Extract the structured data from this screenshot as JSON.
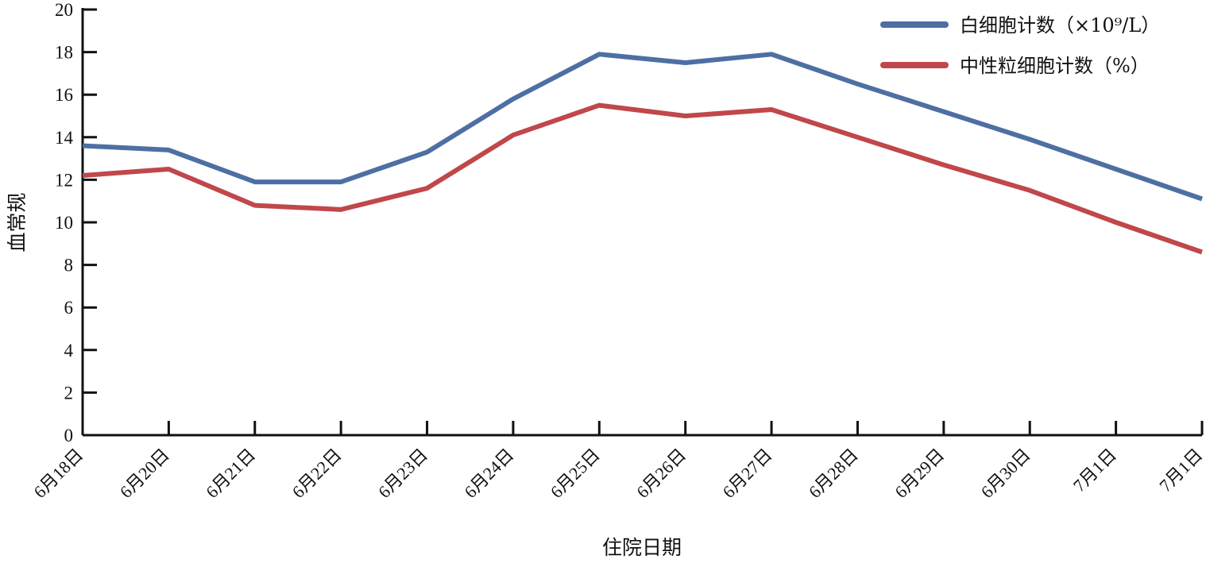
{
  "chart_data": {
    "type": "line",
    "title": "",
    "xlabel": "住院日期",
    "ylabel": "血常规",
    "ylim": [
      0,
      20
    ],
    "yticks": [
      0,
      2,
      4,
      6,
      8,
      10,
      12,
      14,
      16,
      18,
      20
    ],
    "grid": false,
    "legend_position": "top-right",
    "categories": [
      "6月18日",
      "6月20日",
      "6月21日",
      "6月22日",
      "6月23日",
      "6月24日",
      "6月25日",
      "6月26日",
      "6月27日",
      "6月28日",
      "6月29日",
      "6月30日",
      "7月1日",
      "7月1日"
    ],
    "series": [
      {
        "name": "白细胞计数（×10⁹/L）",
        "color": "#4e6fa3",
        "values": [
          13.6,
          13.4,
          11.9,
          11.9,
          13.3,
          15.8,
          17.9,
          17.5,
          17.9,
          16.5,
          15.2,
          13.9,
          12.5,
          11.1
        ]
      },
      {
        "name": "中性粒细胞计数（%）",
        "color": "#c0474a",
        "values": [
          12.2,
          12.5,
          10.8,
          10.6,
          11.6,
          14.1,
          15.5,
          15.0,
          15.3,
          14.0,
          12.7,
          11.5,
          10.0,
          8.6
        ]
      }
    ]
  }
}
